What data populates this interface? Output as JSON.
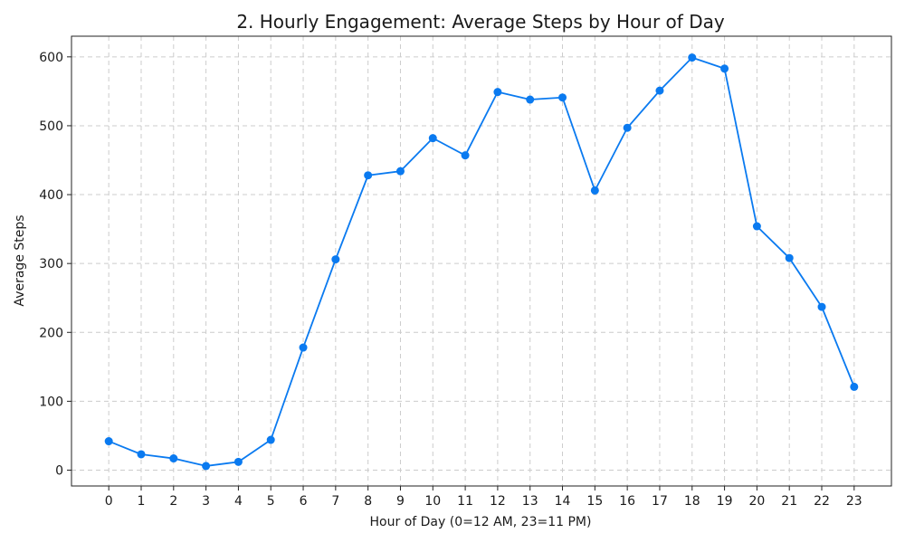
{
  "chart_data": {
    "type": "line",
    "title": "2. Hourly Engagement: Average Steps by Hour of Day",
    "xlabel": "Hour of Day (0=12 AM, 23=11 PM)",
    "ylabel": "Average Steps",
    "x": [
      0,
      1,
      2,
      3,
      4,
      5,
      6,
      7,
      8,
      9,
      10,
      11,
      12,
      13,
      14,
      15,
      16,
      17,
      18,
      19,
      20,
      21,
      22,
      23
    ],
    "series": [
      {
        "values": [
          42,
          23,
          17,
          6,
          12,
          44,
          178,
          306,
          428,
          434,
          482,
          457,
          549,
          538,
          541,
          406,
          497,
          551,
          599,
          583,
          354,
          308,
          237,
          121
        ],
        "color": "#0a7af0"
      }
    ],
    "xticks": [
      "0",
      "1",
      "2",
      "3",
      "4",
      "5",
      "6",
      "7",
      "8",
      "9",
      "10",
      "11",
      "12",
      "13",
      "14",
      "15",
      "16",
      "17",
      "18",
      "19",
      "20",
      "21",
      "22",
      "23"
    ],
    "yticks": [
      "0",
      "100",
      "200",
      "300",
      "400",
      "500",
      "600"
    ],
    "xlim": [
      -1.15,
      24.15
    ],
    "ylim": [
      -23,
      630
    ],
    "grid": true,
    "marker": "circle"
  }
}
